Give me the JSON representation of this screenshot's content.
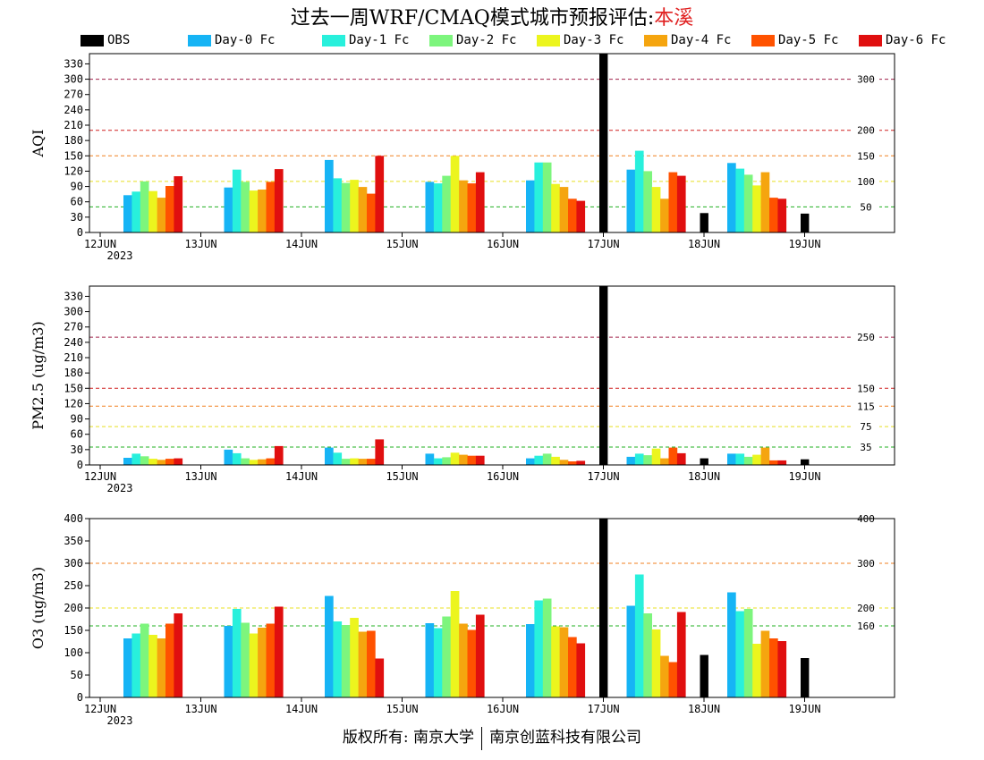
{
  "title": {
    "prefix": "过去一周WRF/CMAQ模式城市预报评估:",
    "city": "本溪"
  },
  "legend": [
    {
      "label": "OBS",
      "color": "#000000"
    },
    {
      "label": "Day-0 Fc",
      "color": "#16b4f5"
    },
    {
      "label": "Day-1 Fc",
      "color": "#28f0dc"
    },
    {
      "label": "Day-2 Fc",
      "color": "#7df57d"
    },
    {
      "label": "Day-3 Fc",
      "color": "#ecf51e"
    },
    {
      "label": "Day-4 Fc",
      "color": "#f5a50f"
    },
    {
      "label": "Day-5 Fc",
      "color": "#ff5200"
    },
    {
      "label": "Day-6 Fc",
      "color": "#e00f0f"
    }
  ],
  "footer": {
    "left": "版权所有: 南京大学",
    "right": "南京创蓝科技有限公司"
  },
  "chart_data": [
    {
      "type": "bar",
      "ylabel": "AQI",
      "ylim": [
        0,
        350
      ],
      "yticks": [
        0,
        30,
        60,
        90,
        120,
        150,
        180,
        210,
        240,
        270,
        300,
        330
      ],
      "categories": [
        "12JUN",
        "13JUN",
        "14JUN",
        "15JUN",
        "16JUN",
        "17JUN",
        "18JUN",
        "19JUN"
      ],
      "year_label": "2023",
      "ref_lines": [
        {
          "value": 300,
          "label": "300",
          "color": "#a0204a"
        },
        {
          "value": 200,
          "label": "200",
          "color": "#d02020"
        },
        {
          "value": 150,
          "label": "150",
          "color": "#f08020"
        },
        {
          "value": 100,
          "label": "100",
          "color": "#e8e020"
        },
        {
          "value": 50,
          "label": "50",
          "color": "#20b020"
        }
      ],
      "series": [
        {
          "name": "OBS",
          "values": [
            null,
            null,
            null,
            null,
            null,
            350,
            38,
            37
          ]
        },
        {
          "name": "Day-0 Fc",
          "values": [
            73,
            88,
            142,
            99,
            102,
            123,
            136,
            null
          ]
        },
        {
          "name": "Day-1 Fc",
          "values": [
            80,
            123,
            106,
            96,
            137,
            160,
            125,
            null
          ]
        },
        {
          "name": "Day-2 Fc",
          "values": [
            100,
            99,
            97,
            111,
            137,
            120,
            113,
            null
          ]
        },
        {
          "name": "Day-3 Fc",
          "values": [
            81,
            82,
            103,
            150,
            95,
            89,
            92,
            null
          ]
        },
        {
          "name": "Day-4 Fc",
          "values": [
            68,
            84,
            89,
            102,
            89,
            66,
            118,
            null
          ]
        },
        {
          "name": "Day-5 Fc",
          "values": [
            91,
            99,
            76,
            96,
            66,
            118,
            68,
            null
          ]
        },
        {
          "name": "Day-6 Fc",
          "values": [
            110,
            124,
            150,
            118,
            62,
            111,
            66,
            null
          ]
        }
      ]
    },
    {
      "type": "bar",
      "ylabel": "PM2.5 (ug/m3)",
      "ylim": [
        0,
        350
      ],
      "yticks": [
        0,
        30,
        60,
        90,
        120,
        150,
        180,
        210,
        240,
        270,
        300,
        330
      ],
      "categories": [
        "12JUN",
        "13JUN",
        "14JUN",
        "15JUN",
        "16JUN",
        "17JUN",
        "18JUN",
        "19JUN"
      ],
      "year_label": "2023",
      "ref_lines": [
        {
          "value": 250,
          "label": "250",
          "color": "#a0204a"
        },
        {
          "value": 150,
          "label": "150",
          "color": "#d02020"
        },
        {
          "value": 115,
          "label": "115",
          "color": "#f08020"
        },
        {
          "value": 75,
          "label": "75",
          "color": "#e8e020"
        },
        {
          "value": 35,
          "label": "35",
          "color": "#20b020"
        }
      ],
      "series": [
        {
          "name": "OBS",
          "values": [
            null,
            null,
            null,
            null,
            null,
            350,
            13,
            11
          ]
        },
        {
          "name": "Day-0 Fc",
          "values": [
            14,
            30,
            34,
            22,
            13,
            16,
            22,
            null
          ]
        },
        {
          "name": "Day-1 Fc",
          "values": [
            22,
            23,
            24,
            13,
            18,
            22,
            22,
            null
          ]
        },
        {
          "name": "Day-2 Fc",
          "values": [
            17,
            13,
            12,
            15,
            22,
            19,
            16,
            null
          ]
        },
        {
          "name": "Day-3 Fc",
          "values": [
            12,
            10,
            13,
            24,
            16,
            32,
            20,
            null
          ]
        },
        {
          "name": "Day-4 Fc",
          "values": [
            10,
            11,
            12,
            20,
            10,
            13,
            34,
            null
          ]
        },
        {
          "name": "Day-5 Fc",
          "values": [
            12,
            13,
            12,
            18,
            7,
            34,
            9,
            null
          ]
        },
        {
          "name": "Day-6 Fc",
          "values": [
            13,
            37,
            50,
            18,
            8,
            23,
            9,
            null
          ]
        }
      ]
    },
    {
      "type": "bar",
      "ylabel": "O3 (ug/m3)",
      "ylim": [
        0,
        400
      ],
      "yticks": [
        0,
        50,
        100,
        150,
        200,
        250,
        300,
        350,
        400
      ],
      "categories": [
        "12JUN",
        "13JUN",
        "14JUN",
        "15JUN",
        "16JUN",
        "17JUN",
        "18JUN",
        "19JUN"
      ],
      "year_label": "2023",
      "ref_lines": [
        {
          "value": 400,
          "label": "400",
          "color": "#d02020"
        },
        {
          "value": 300,
          "label": "300",
          "color": "#f08020"
        },
        {
          "value": 200,
          "label": "200",
          "color": "#e8e020"
        },
        {
          "value": 160,
          "label": "160",
          "color": "#20b020"
        }
      ],
      "series": [
        {
          "name": "OBS",
          "values": [
            null,
            null,
            null,
            null,
            null,
            400,
            95,
            88
          ]
        },
        {
          "name": "Day-0 Fc",
          "values": [
            132,
            160,
            227,
            166,
            164,
            205,
            235,
            null
          ]
        },
        {
          "name": "Day-1 Fc",
          "values": [
            143,
            198,
            170,
            155,
            217,
            275,
            193,
            null
          ]
        },
        {
          "name": "Day-2 Fc",
          "values": [
            165,
            167,
            162,
            181,
            221,
            188,
            198,
            null
          ]
        },
        {
          "name": "Day-3 Fc",
          "values": [
            140,
            143,
            178,
            238,
            159,
            152,
            120,
            null
          ]
        },
        {
          "name": "Day-4 Fc",
          "values": [
            132,
            156,
            147,
            165,
            157,
            93,
            149,
            null
          ]
        },
        {
          "name": "Day-5 Fc",
          "values": [
            165,
            165,
            149,
            151,
            135,
            79,
            132,
            null
          ]
        },
        {
          "name": "Day-6 Fc",
          "values": [
            188,
            203,
            87,
            185,
            121,
            191,
            126,
            null
          ]
        }
      ]
    }
  ]
}
